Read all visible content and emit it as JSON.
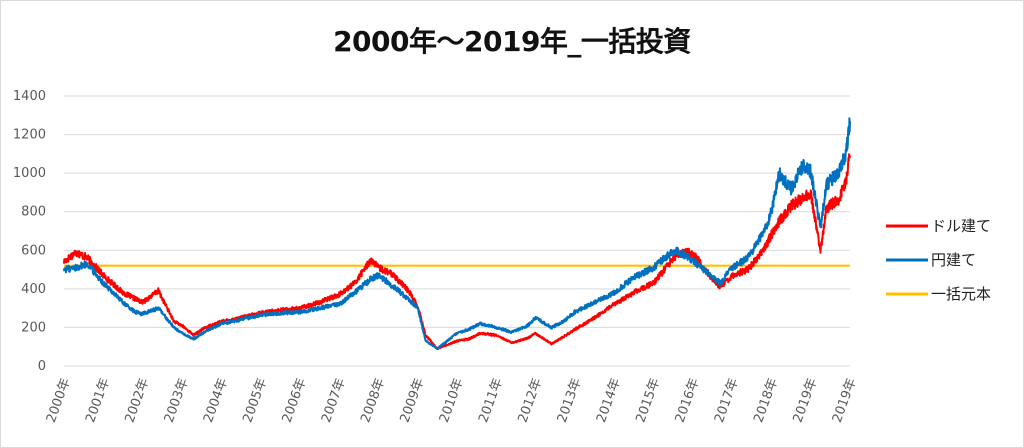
{
  "chart_data": {
    "type": "line",
    "title": "2000年～2019年_一括投資",
    "xlabel": "",
    "ylabel": "",
    "ylim": [
      0,
      1400
    ],
    "yticks": [
      "0",
      "200",
      "400",
      "600",
      "800",
      "1000",
      "1200",
      "1400"
    ],
    "xticks": [
      "2000年",
      "2001年",
      "2002年",
      "2003年",
      "2004年",
      "2005年",
      "2006年",
      "2007年",
      "2008年",
      "2009年",
      "2010年",
      "2011年",
      "2012年",
      "2013年",
      "2014年",
      "2015年",
      "2016年",
      "2017年",
      "2018年",
      "2019年",
      "2019年"
    ],
    "grid": true,
    "legend_position": "right",
    "series": [
      {
        "name": "ドル建て",
        "color": "#ff0000",
        "x": [
          2000.0,
          2000.3,
          2000.6,
          2001.0,
          2001.5,
          2001.8,
          2002.0,
          2002.4,
          2002.8,
          2003.0,
          2003.3,
          2003.6,
          2004.0,
          2004.5,
          2005.0,
          2005.5,
          2006.0,
          2006.5,
          2007.0,
          2007.4,
          2007.8,
          2008.0,
          2008.4,
          2008.8,
          2009.0,
          2009.2,
          2009.5,
          2010.0,
          2010.3,
          2010.6,
          2011.0,
          2011.4,
          2011.8,
          2012.0,
          2012.4,
          2012.7,
          2013.0,
          2013.5,
          2014.0,
          2014.5,
          2015.0,
          2015.4,
          2015.6,
          2015.9,
          2016.1,
          2016.4,
          2016.7,
          2017.0,
          2017.4,
          2017.8,
          2018.0,
          2018.2,
          2018.5,
          2018.8,
          2019.0,
          2019.25,
          2019.4,
          2019.7,
          2019.9,
          2019.97,
          2020.0
        ],
        "values": [
          540,
          590,
          560,
          470,
          380,
          350,
          330,
          390,
          230,
          210,
          160,
          200,
          230,
          250,
          275,
          290,
          300,
          330,
          370,
          430,
          550,
          510,
          470,
          380,
          310,
          160,
          90,
          130,
          140,
          170,
          160,
          120,
          145,
          170,
          115,
          150,
          190,
          250,
          320,
          380,
          430,
          530,
          580,
          590,
          560,
          470,
          410,
          470,
          500,
          600,
          680,
          750,
          830,
          870,
          900,
          600,
          820,
          860,
          950,
          1080,
          1090
        ]
      },
      {
        "name": "円建て",
        "color": "#0070c0",
        "x": [
          2000.0,
          2000.3,
          2000.6,
          2001.0,
          2001.5,
          2001.8,
          2002.0,
          2002.4,
          2002.8,
          2003.0,
          2003.3,
          2003.6,
          2004.0,
          2004.5,
          2005.0,
          2005.5,
          2006.0,
          2006.5,
          2007.0,
          2007.4,
          2007.8,
          2008.0,
          2008.4,
          2008.8,
          2009.0,
          2009.2,
          2009.5,
          2010.0,
          2010.3,
          2010.6,
          2011.0,
          2011.4,
          2011.8,
          2012.0,
          2012.4,
          2012.7,
          2013.0,
          2013.5,
          2014.0,
          2014.5,
          2015.0,
          2015.4,
          2015.6,
          2015.9,
          2016.1,
          2016.4,
          2016.7,
          2017.0,
          2017.4,
          2017.8,
          2018.0,
          2018.2,
          2018.5,
          2018.8,
          2019.0,
          2019.25,
          2019.4,
          2019.7,
          2019.9,
          2019.97,
          2020.0
        ],
        "values": [
          500,
          510,
          530,
          430,
          330,
          280,
          270,
          300,
          200,
          170,
          140,
          180,
          220,
          240,
          265,
          275,
          280,
          300,
          320,
          380,
          450,
          470,
          410,
          340,
          300,
          130,
          90,
          170,
          190,
          220,
          200,
          175,
          210,
          250,
          200,
          230,
          280,
          330,
          380,
          460,
          510,
          580,
          600,
          560,
          530,
          480,
          430,
          510,
          560,
          690,
          800,
          1000,
          920,
          1040,
          1010,
          720,
          940,
          1000,
          1100,
          1220,
          1270
        ]
      },
      {
        "name": "一括元本",
        "color": "#ffc000",
        "x": [
          2000.0,
          2020.0
        ],
        "values": [
          520,
          520
        ]
      }
    ]
  }
}
